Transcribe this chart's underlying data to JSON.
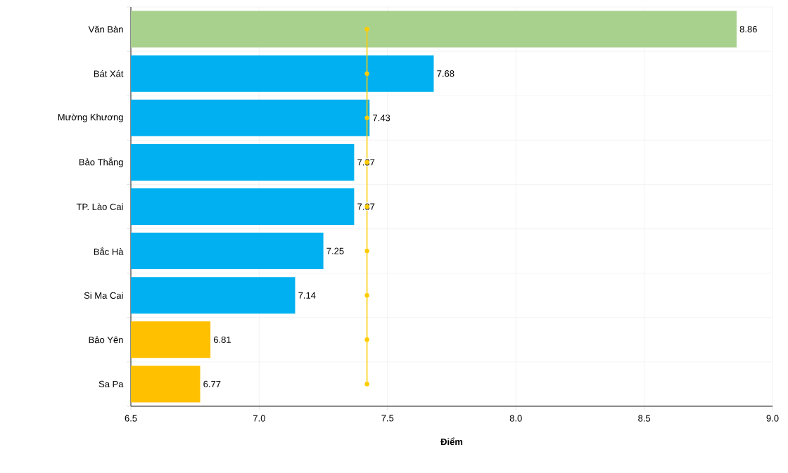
{
  "chart_data": {
    "type": "bar",
    "orientation": "horizontal",
    "xlabel": "**Điểm**",
    "categories": [
      "Văn Bàn",
      "Bát  Xát",
      "Mường Khương",
      "Bảo Thắng",
      "TP. Lào Cai",
      "Bắc Hà",
      "Si Ma Cai",
      "Bảo Yên",
      "Sa Pa"
    ],
    "series": [
      {
        "values": [
          8.86,
          7.68,
          7.43,
          7.37,
          7.37,
          7.25,
          7.14,
          6.81,
          6.77
        ],
        "value_labels": [
          "8.86",
          "7.68",
          "7.43",
          "7.37",
          "7.37",
          "7.25",
          "7.14",
          "6.81",
          "6.77"
        ],
        "colors": [
          "#a9d18e",
          "#00b0f0",
          "#00b0f0",
          "#00b0f0",
          "#00b0f0",
          "#00b0f0",
          "#00b0f0",
          "#ffc000",
          "#ffc000"
        ]
      },
      {
        "type": "line",
        "color": "#ffcc00",
        "marker": "circle",
        "values": [
          7.42,
          7.42,
          7.42,
          7.42,
          7.42,
          7.42,
          7.42,
          7.42,
          7.42
        ]
      }
    ],
    "xlim": [
      6.5,
      9.0
    ],
    "xticks": [
      6.5,
      {
        "value": 7.0,
        "label": "7.0"
      },
      7.5,
      {
        "value": 8.0,
        "label": "8.0"
      },
      8.5,
      {
        "value": 9.0,
        "label": "9.0"
      }
    ],
    "grid": true
  }
}
